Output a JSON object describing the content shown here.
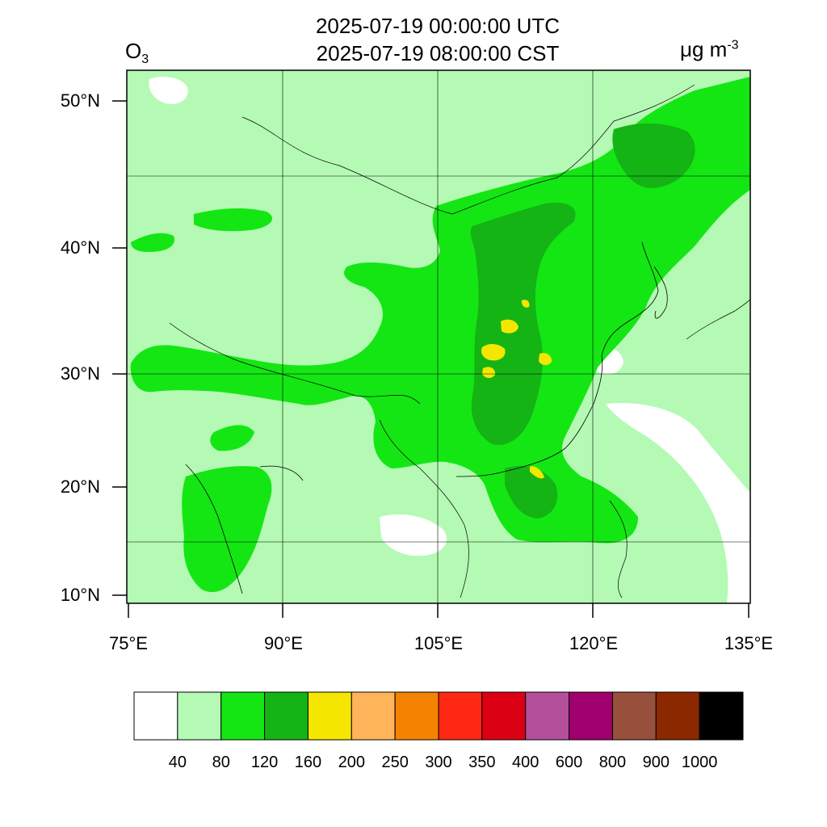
{
  "title": {
    "line1": "2025-07-19 00:00:00 UTC",
    "line2": "2025-07-19 08:00:00 CST",
    "species_base": "O",
    "species_sub": "3",
    "units_base": "μg m",
    "units_sup": "-3"
  },
  "map": {
    "lat_labels": [
      {
        "value": 50,
        "text": "50°N"
      },
      {
        "value": 40,
        "text": "40°N"
      },
      {
        "value": 30,
        "text": "30°N"
      },
      {
        "value": 20,
        "text": "20°N"
      },
      {
        "value": 10,
        "text": "10°N"
      }
    ],
    "lon_labels": [
      {
        "value": 75,
        "text": "75°E"
      },
      {
        "value": 90,
        "text": "90°E"
      },
      {
        "value": 105,
        "text": "105°E"
      },
      {
        "value": 120,
        "text": "120°E"
      },
      {
        "value": 135,
        "text": "135°E"
      }
    ]
  },
  "colorbar": {
    "colors": [
      "#ffffff",
      "#b4fab4",
      "#14e614",
      "#14b414",
      "#f5e600",
      "#ffb45a",
      "#f58200",
      "#ff2814",
      "#dc0014",
      "#b4509b",
      "#a0006e",
      "#96503c",
      "#8c2800",
      "#000000"
    ],
    "labels": [
      "40",
      "80",
      "120",
      "160",
      "200",
      "250",
      "300",
      "350",
      "400",
      "600",
      "800",
      "900",
      "1000"
    ]
  }
}
